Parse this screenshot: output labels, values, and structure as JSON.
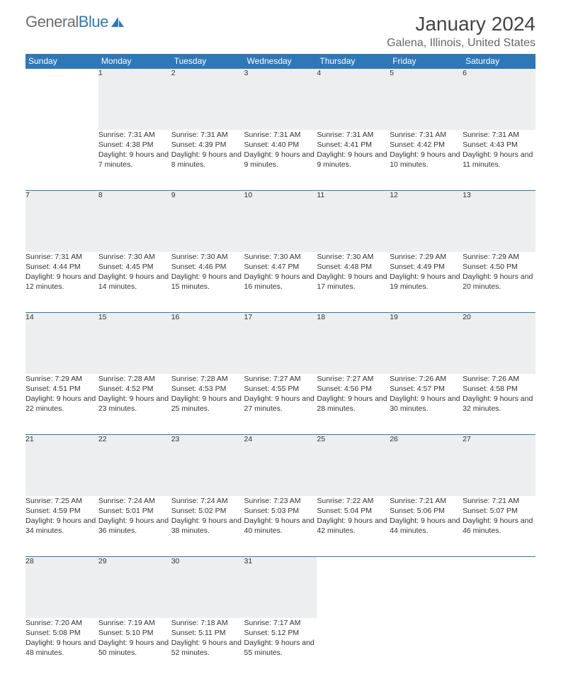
{
  "brand": {
    "part1": "General",
    "part2": "Blue"
  },
  "title": "January 2024",
  "location": "Galena, Illinois, United States",
  "colors": {
    "header_bg": "#2f78b7",
    "header_text": "#ffffff",
    "daynum_bg": "#eceeef",
    "row_border": "#2f78b7",
    "page_bg": "#ffffff",
    "text": "#333333",
    "logo_gray": "#6e6e6e"
  },
  "weekdays": [
    "Sunday",
    "Monday",
    "Tuesday",
    "Wednesday",
    "Thursday",
    "Friday",
    "Saturday"
  ],
  "weeks": [
    [
      null,
      {
        "n": "1",
        "sr": "7:31 AM",
        "ss": "4:38 PM",
        "dl": "9 hours and 7 minutes."
      },
      {
        "n": "2",
        "sr": "7:31 AM",
        "ss": "4:39 PM",
        "dl": "9 hours and 8 minutes."
      },
      {
        "n": "3",
        "sr": "7:31 AM",
        "ss": "4:40 PM",
        "dl": "9 hours and 9 minutes."
      },
      {
        "n": "4",
        "sr": "7:31 AM",
        "ss": "4:41 PM",
        "dl": "9 hours and 9 minutes."
      },
      {
        "n": "5",
        "sr": "7:31 AM",
        "ss": "4:42 PM",
        "dl": "9 hours and 10 minutes."
      },
      {
        "n": "6",
        "sr": "7:31 AM",
        "ss": "4:43 PM",
        "dl": "9 hours and 11 minutes."
      }
    ],
    [
      {
        "n": "7",
        "sr": "7:31 AM",
        "ss": "4:44 PM",
        "dl": "9 hours and 12 minutes."
      },
      {
        "n": "8",
        "sr": "7:30 AM",
        "ss": "4:45 PM",
        "dl": "9 hours and 14 minutes."
      },
      {
        "n": "9",
        "sr": "7:30 AM",
        "ss": "4:46 PM",
        "dl": "9 hours and 15 minutes."
      },
      {
        "n": "10",
        "sr": "7:30 AM",
        "ss": "4:47 PM",
        "dl": "9 hours and 16 minutes."
      },
      {
        "n": "11",
        "sr": "7:30 AM",
        "ss": "4:48 PM",
        "dl": "9 hours and 17 minutes."
      },
      {
        "n": "12",
        "sr": "7:29 AM",
        "ss": "4:49 PM",
        "dl": "9 hours and 19 minutes."
      },
      {
        "n": "13",
        "sr": "7:29 AM",
        "ss": "4:50 PM",
        "dl": "9 hours and 20 minutes."
      }
    ],
    [
      {
        "n": "14",
        "sr": "7:29 AM",
        "ss": "4:51 PM",
        "dl": "9 hours and 22 minutes."
      },
      {
        "n": "15",
        "sr": "7:28 AM",
        "ss": "4:52 PM",
        "dl": "9 hours and 23 minutes."
      },
      {
        "n": "16",
        "sr": "7:28 AM",
        "ss": "4:53 PM",
        "dl": "9 hours and 25 minutes."
      },
      {
        "n": "17",
        "sr": "7:27 AM",
        "ss": "4:55 PM",
        "dl": "9 hours and 27 minutes."
      },
      {
        "n": "18",
        "sr": "7:27 AM",
        "ss": "4:56 PM",
        "dl": "9 hours and 28 minutes."
      },
      {
        "n": "19",
        "sr": "7:26 AM",
        "ss": "4:57 PM",
        "dl": "9 hours and 30 minutes."
      },
      {
        "n": "20",
        "sr": "7:26 AM",
        "ss": "4:58 PM",
        "dl": "9 hours and 32 minutes."
      }
    ],
    [
      {
        "n": "21",
        "sr": "7:25 AM",
        "ss": "4:59 PM",
        "dl": "9 hours and 34 minutes."
      },
      {
        "n": "22",
        "sr": "7:24 AM",
        "ss": "5:01 PM",
        "dl": "9 hours and 36 minutes."
      },
      {
        "n": "23",
        "sr": "7:24 AM",
        "ss": "5:02 PM",
        "dl": "9 hours and 38 minutes."
      },
      {
        "n": "24",
        "sr": "7:23 AM",
        "ss": "5:03 PM",
        "dl": "9 hours and 40 minutes."
      },
      {
        "n": "25",
        "sr": "7:22 AM",
        "ss": "5:04 PM",
        "dl": "9 hours and 42 minutes."
      },
      {
        "n": "26",
        "sr": "7:21 AM",
        "ss": "5:06 PM",
        "dl": "9 hours and 44 minutes."
      },
      {
        "n": "27",
        "sr": "7:21 AM",
        "ss": "5:07 PM",
        "dl": "9 hours and 46 minutes."
      }
    ],
    [
      {
        "n": "28",
        "sr": "7:20 AM",
        "ss": "5:08 PM",
        "dl": "9 hours and 48 minutes."
      },
      {
        "n": "29",
        "sr": "7:19 AM",
        "ss": "5:10 PM",
        "dl": "9 hours and 50 minutes."
      },
      {
        "n": "30",
        "sr": "7:18 AM",
        "ss": "5:11 PM",
        "dl": "9 hours and 52 minutes."
      },
      {
        "n": "31",
        "sr": "7:17 AM",
        "ss": "5:12 PM",
        "dl": "9 hours and 55 minutes."
      },
      null,
      null,
      null
    ]
  ],
  "labels": {
    "sunrise": "Sunrise:",
    "sunset": "Sunset:",
    "daylight": "Daylight:"
  }
}
